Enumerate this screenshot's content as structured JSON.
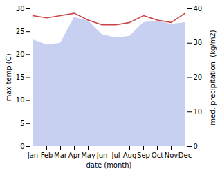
{
  "chart_data": {
    "type": "line",
    "xlabel": "date (month)",
    "ylabel": "max temp (C)",
    "y2label": "med. precipitation  (kg/m2)",
    "categories": [
      "Jan",
      "Feb",
      "Mar",
      "Apr",
      "May",
      "Jun",
      "Jul",
      "Aug",
      "Sep",
      "Oct",
      "Nov",
      "Dec"
    ],
    "series": [
      {
        "type": "area",
        "axis": "y2",
        "color": "#c8d0f2",
        "values": [
          31.0,
          29.5,
          30.0,
          37.5,
          36.5,
          32.5,
          31.5,
          32.0,
          36.0,
          36.5,
          35.5,
          36.0
        ]
      },
      {
        "type": "line",
        "color": "#cc4444",
        "values": [
          28.5,
          28.0,
          28.5,
          29.0,
          27.5,
          26.5,
          26.5,
          27.0,
          28.5,
          27.5,
          27.0,
          29.0
        ]
      }
    ],
    "ylim": [
      0,
      30
    ],
    "yticks": [
      0,
      5,
      10,
      15,
      20,
      25,
      30
    ],
    "y2lim": [
      0,
      40
    ],
    "y2ticks": [
      0,
      10,
      20,
      30,
      40
    ]
  }
}
